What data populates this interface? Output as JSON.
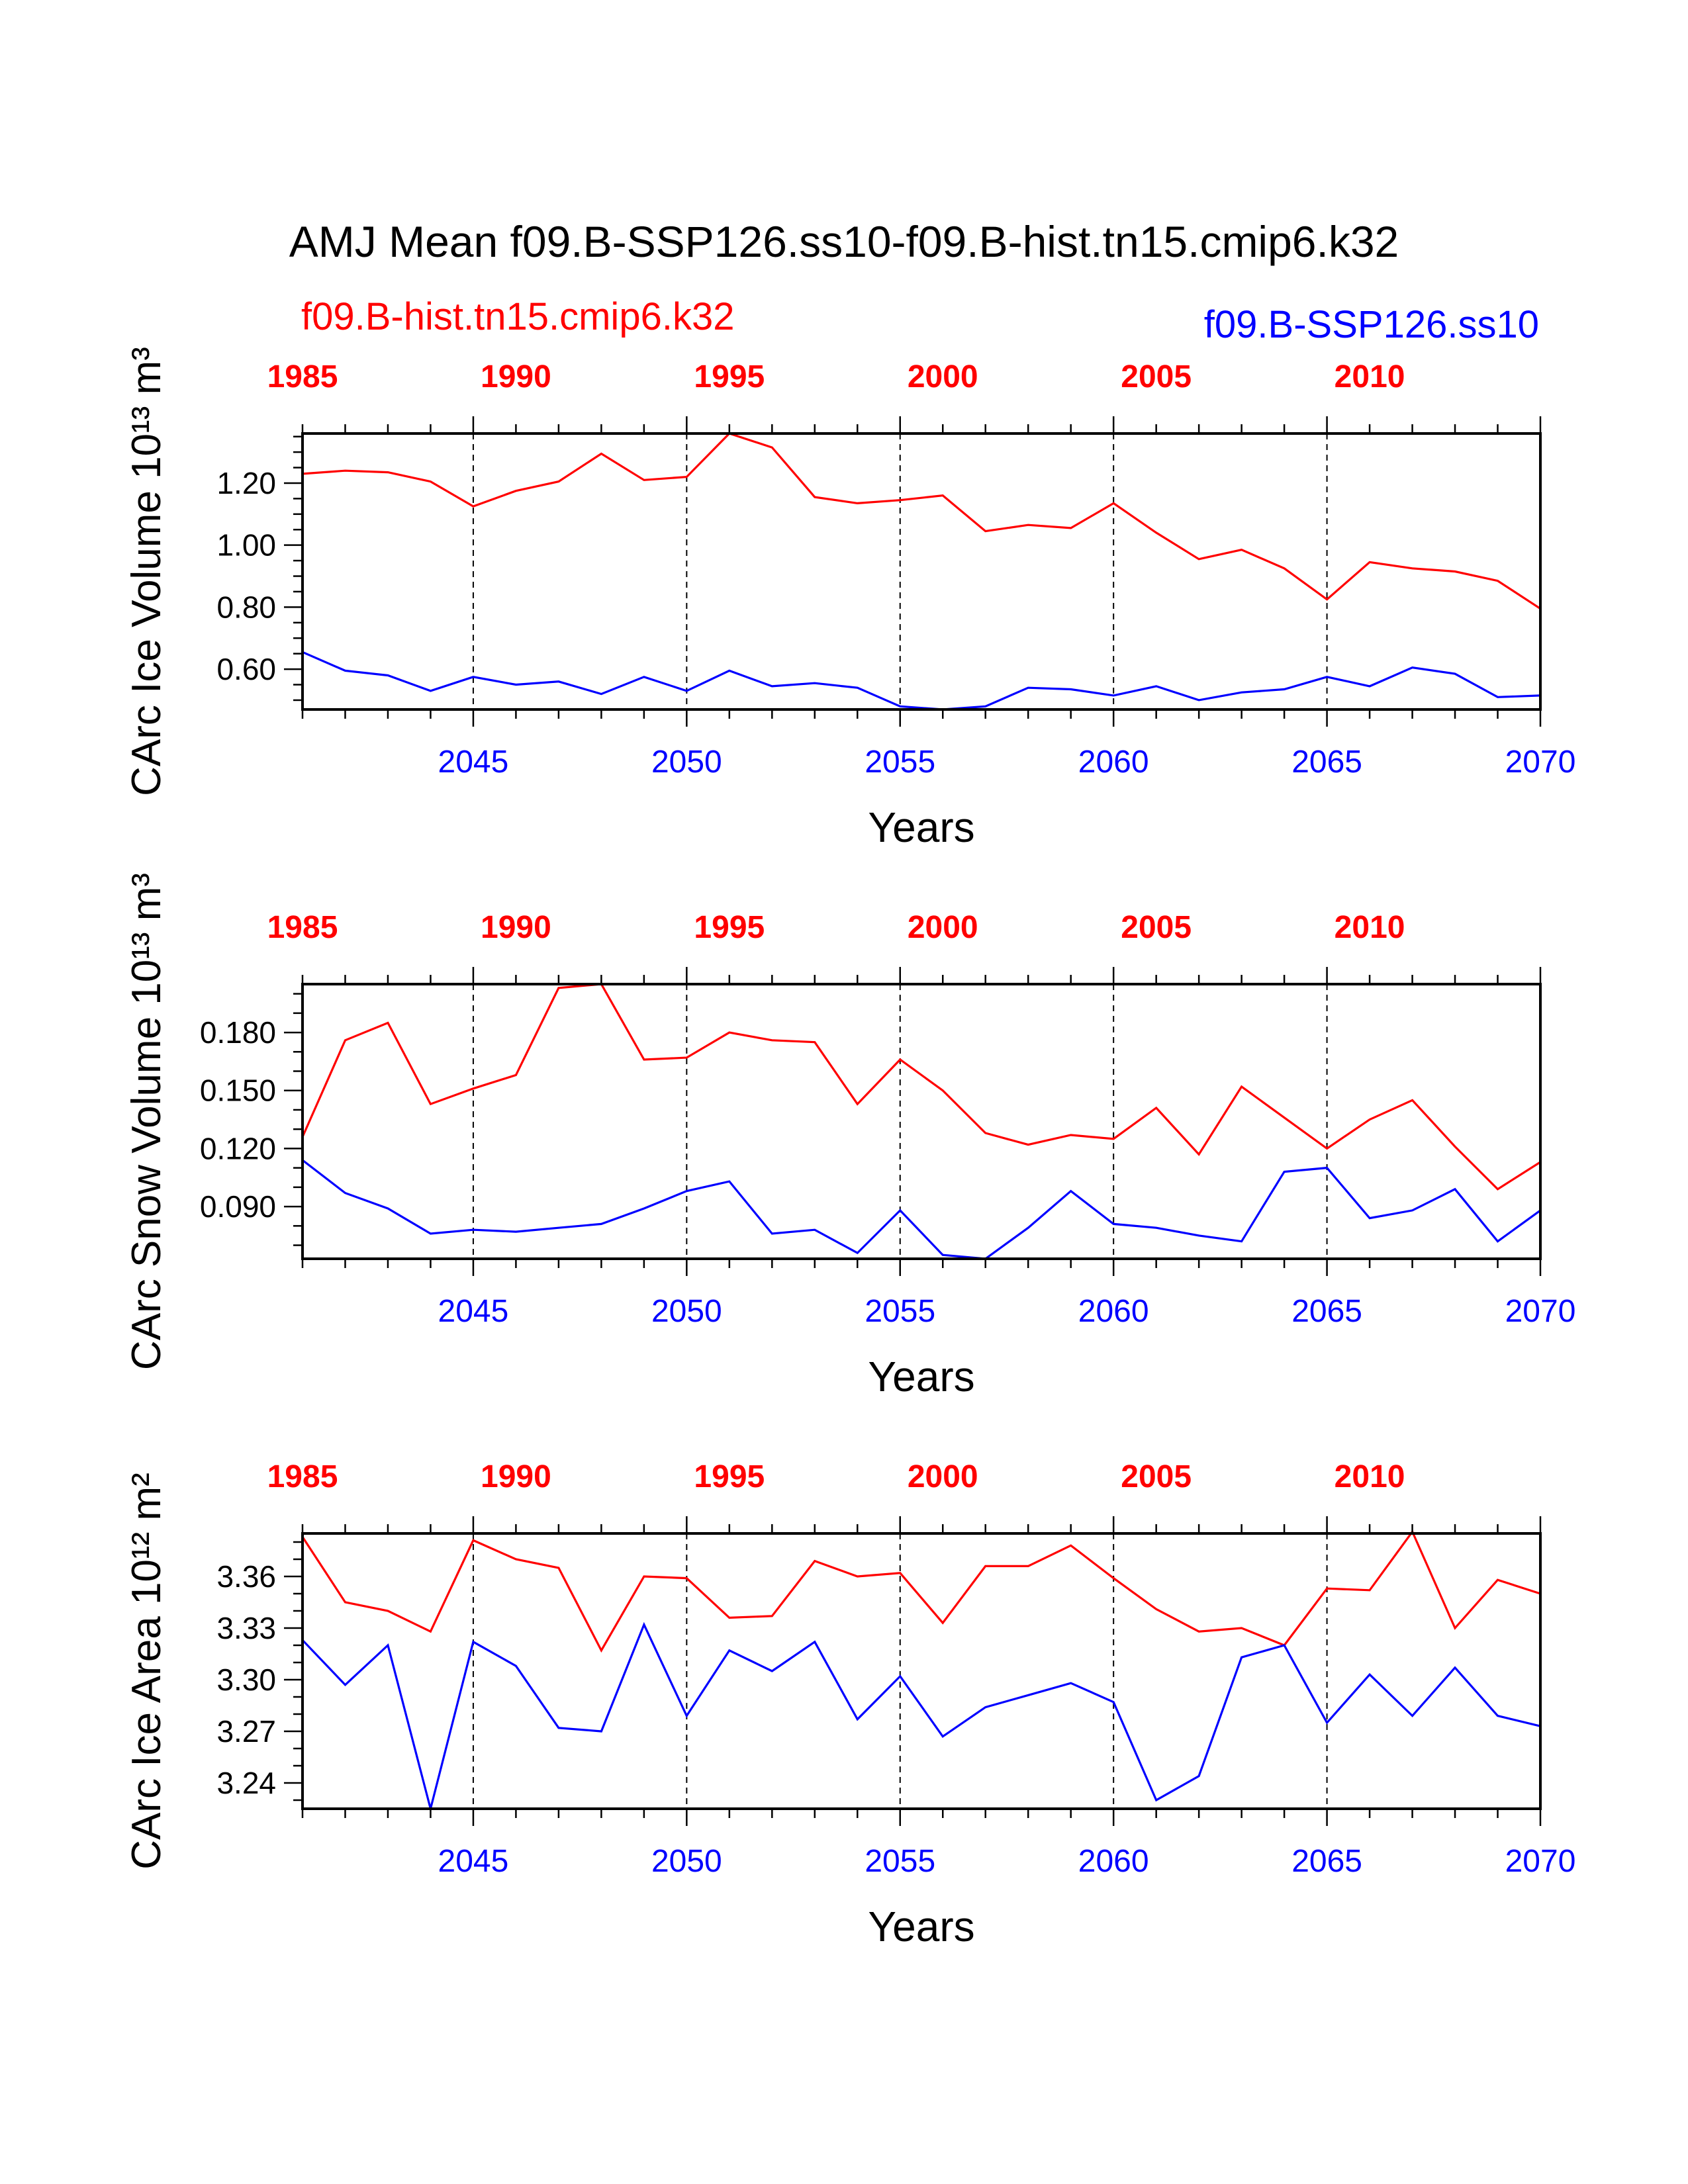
{
  "figure": {
    "title": "AMJ Mean f09.B-SSP126.ss10-f09.B-hist.tn15.cmip6.k32",
    "legend_red": "f09.B-hist.tn15.cmip6.k32",
    "legend_blue": "f09.B-SSP126.ss10",
    "colors": {
      "red": "#ff0000",
      "blue": "#0000ff",
      "axis": "#000000"
    }
  },
  "chart_data": [
    {
      "type": "line",
      "title": "",
      "xlabel": "Years",
      "ylabel": "CArc Ice Volume 10¹³ m³",
      "ylim": [
        0.47,
        1.36
      ],
      "yticks": [
        "0.60",
        "0.80",
        "1.00",
        "1.20"
      ],
      "yminor_step": 0.05,
      "xlim": [
        2041,
        2070
      ],
      "x_bottom_ticks": [
        "2045",
        "2050",
        "2055",
        "2060",
        "2065",
        "2070"
      ],
      "x_top_ticks": [
        "1985",
        "1990",
        "1995",
        "2000",
        "2005",
        "2010"
      ],
      "x_top_offset": 56,
      "grid_years": [
        2045,
        2050,
        2055,
        2060,
        2065
      ],
      "series": [
        {
          "color": "#ff0000",
          "x_start": 2041,
          "values": [
            1.23,
            1.24,
            1.235,
            1.205,
            1.125,
            1.175,
            1.205,
            1.295,
            1.21,
            1.22,
            1.36,
            1.315,
            1.155,
            1.135,
            1.145,
            1.16,
            1.045,
            1.065,
            1.055,
            1.135,
            1.04,
            0.955,
            0.985,
            0.925,
            0.825,
            0.945,
            0.925,
            0.915,
            0.885,
            0.795
          ]
        },
        {
          "color": "#0000ff",
          "x_start": 2041,
          "values": [
            0.655,
            0.595,
            0.58,
            0.53,
            0.575,
            0.55,
            0.56,
            0.52,
            0.575,
            0.53,
            0.595,
            0.545,
            0.555,
            0.54,
            0.48,
            0.47,
            0.48,
            0.54,
            0.535,
            0.515,
            0.545,
            0.5,
            0.525,
            0.535,
            0.575,
            0.545,
            0.605,
            0.585,
            0.51,
            0.515
          ]
        }
      ]
    },
    {
      "type": "line",
      "title": "",
      "xlabel": "Years",
      "ylabel": "CArc Snow Volume 10¹³ m³",
      "ylim": [
        0.063,
        0.205
      ],
      "yticks": [
        "0.090",
        "0.120",
        "0.150",
        "0.180"
      ],
      "yminor_step": 0.01,
      "xlim": [
        2041,
        2070
      ],
      "x_bottom_ticks": [
        "2045",
        "2050",
        "2055",
        "2060",
        "2065",
        "2070"
      ],
      "x_top_ticks": [
        "1985",
        "1990",
        "1995",
        "2000",
        "2005",
        "2010"
      ],
      "x_top_offset": 56,
      "grid_years": [
        2045,
        2050,
        2055,
        2060,
        2065
      ],
      "series": [
        {
          "color": "#ff0000",
          "x_start": 2041,
          "values": [
            0.126,
            0.176,
            0.185,
            0.143,
            0.151,
            0.158,
            0.203,
            0.205,
            0.166,
            0.167,
            0.18,
            0.176,
            0.175,
            0.143,
            0.166,
            0.15,
            0.128,
            0.122,
            0.127,
            0.125,
            0.141,
            0.117,
            0.152,
            0.136,
            0.12,
            0.135,
            0.145,
            0.121,
            0.099,
            0.113
          ]
        },
        {
          "color": "#0000ff",
          "x_start": 2041,
          "values": [
            0.114,
            0.097,
            0.089,
            0.076,
            0.078,
            0.077,
            0.079,
            0.081,
            0.089,
            0.098,
            0.103,
            0.076,
            0.078,
            0.066,
            0.088,
            0.065,
            0.063,
            0.079,
            0.098,
            0.081,
            0.079,
            0.075,
            0.072,
            0.108,
            0.11,
            0.084,
            0.088,
            0.099,
            0.072,
            0.088
          ]
        }
      ]
    },
    {
      "type": "line",
      "title": "",
      "xlabel": "Years",
      "ylabel": "CArc Ice Area 10¹² m²",
      "ylim": [
        3.225,
        3.385
      ],
      "yticks": [
        "3.24",
        "3.27",
        "3.30",
        "3.33",
        "3.36"
      ],
      "yminor_step": 0.01,
      "xlim": [
        2041,
        2070
      ],
      "x_bottom_ticks": [
        "2045",
        "2050",
        "2055",
        "2060",
        "2065",
        "2070"
      ],
      "x_top_ticks": [
        "1985",
        "1990",
        "1995",
        "2000",
        "2005",
        "2010"
      ],
      "x_top_offset": 56,
      "grid_years": [
        2045,
        2050,
        2055,
        2060,
        2065
      ],
      "series": [
        {
          "color": "#ff0000",
          "x_start": 2041,
          "values": [
            3.383,
            3.345,
            3.34,
            3.328,
            3.381,
            3.37,
            3.365,
            3.317,
            3.36,
            3.359,
            3.336,
            3.337,
            3.369,
            3.36,
            3.362,
            3.333,
            3.366,
            3.366,
            3.378,
            3.359,
            3.341,
            3.328,
            3.33,
            3.32,
            3.353,
            3.352,
            3.386,
            3.33,
            3.358,
            3.35
          ]
        },
        {
          "color": "#0000ff",
          "x_start": 2041,
          "values": [
            3.323,
            3.297,
            3.32,
            3.225,
            3.322,
            3.308,
            3.272,
            3.27,
            3.332,
            3.279,
            3.317,
            3.305,
            3.322,
            3.277,
            3.302,
            3.267,
            3.284,
            3.291,
            3.298,
            3.287,
            3.23,
            3.244,
            3.313,
            3.32,
            3.275,
            3.303,
            3.279,
            3.307,
            3.279,
            3.273
          ]
        }
      ]
    }
  ]
}
